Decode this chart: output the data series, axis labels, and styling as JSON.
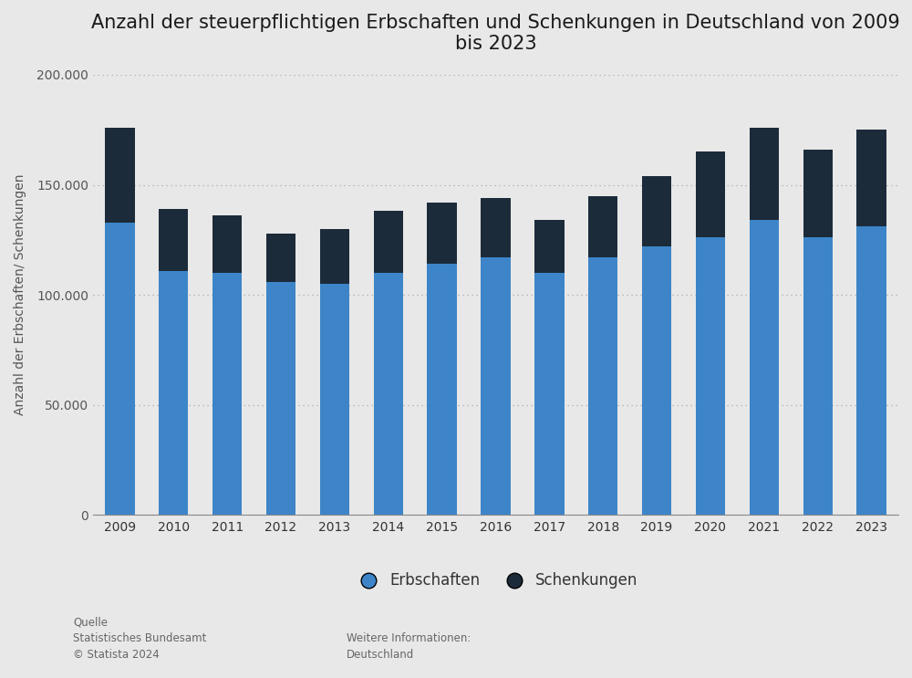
{
  "title": "Anzahl der steuerpflichtigen Erbschaften und Schenkungen in Deutschland von 2009\nbis 2023",
  "ylabel": "Anzahl der Erbschaften/ Schenkungen",
  "years": [
    2009,
    2010,
    2011,
    2012,
    2013,
    2014,
    2015,
    2016,
    2017,
    2018,
    2019,
    2020,
    2021,
    2022,
    2023
  ],
  "erbschaften": [
    133000,
    111000,
    110000,
    106000,
    105000,
    110000,
    114000,
    117000,
    110000,
    117000,
    122000,
    126000,
    134000,
    126000,
    131000
  ],
  "schenkungen": [
    43000,
    28000,
    26000,
    22000,
    25000,
    28000,
    28000,
    27000,
    24000,
    28000,
    32000,
    39000,
    42000,
    40000,
    44000
  ],
  "color_erbschaften": "#3d85c8",
  "color_schenkungen": "#1c2b3a",
  "background_color": "#e8e8e8",
  "ylim": [
    0,
    200000
  ],
  "yticks": [
    0,
    50000,
    100000,
    150000,
    200000
  ],
  "ytick_labels": [
    "0",
    "50.000",
    "100.000",
    "150.000",
    "200.000"
  ],
  "legend_label_erbschaften": "Erbschaften",
  "legend_label_schenkungen": "Schenkungen",
  "source_text": "Quelle\nStatistisches Bundesamt\n© Statista 2024",
  "info_text": "Weitere Informationen:\nDeutschland",
  "title_fontsize": 15,
  "axis_label_fontsize": 10,
  "tick_fontsize": 10,
  "legend_fontsize": 12
}
